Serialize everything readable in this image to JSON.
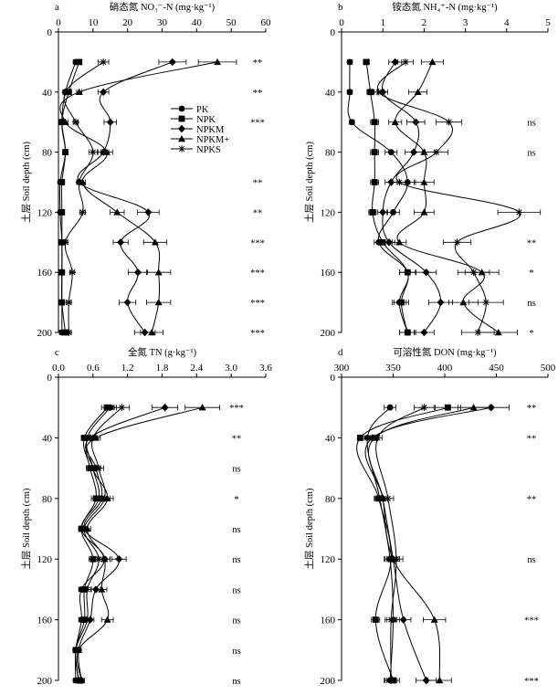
{
  "legend": [
    {
      "name": "PK",
      "marker": "circle"
    },
    {
      "name": "NPK",
      "marker": "square"
    },
    {
      "name": "NPKM",
      "marker": "diamond"
    },
    {
      "name": "NPKM+",
      "marker": "triangle"
    },
    {
      "name": "NPKS",
      "marker": "star"
    }
  ],
  "colors": {
    "line": "#000000",
    "background": "#ffffff"
  },
  "chart_data": [
    {
      "type": "line",
      "panel": "a",
      "title": "硝态氮 NO₃⁻-N (mg·kg⁻¹)",
      "ylabel": "土层 Soil depth (cm)",
      "xlim": [
        0,
        60
      ],
      "xticks": [
        "0",
        "10",
        "20",
        "30",
        "40",
        "50",
        "60"
      ],
      "ylim": [
        0,
        200
      ],
      "yticks": [
        "0",
        "40",
        "80",
        "120",
        "160",
        "200"
      ],
      "y_reversed": true,
      "depths": [
        20,
        40,
        60,
        80,
        100,
        120,
        140,
        160,
        180,
        200
      ],
      "series": [
        {
          "name": "PK",
          "values": [
            5,
            2,
            1,
            2,
            0.5,
            0.5,
            1,
            1,
            1,
            1
          ]
        },
        {
          "name": "NPK",
          "values": [
            6,
            3,
            1,
            2,
            1,
            1,
            1,
            1,
            1,
            2
          ]
        },
        {
          "name": "NPKM",
          "values": [
            33,
            13,
            15,
            13,
            6,
            26,
            18,
            23,
            20,
            25
          ]
        },
        {
          "name": "NPKM+",
          "values": [
            46,
            6,
            2,
            14,
            7,
            17,
            28,
            29,
            29,
            27
          ]
        },
        {
          "name": "NPKS",
          "values": [
            13,
            2,
            5,
            10,
            6,
            7,
            2,
            4,
            3,
            3
          ]
        }
      ],
      "significance": [
        "**",
        "**",
        "***",
        "",
        "**",
        "**",
        "***",
        "***",
        "***",
        "***"
      ]
    },
    {
      "type": "line",
      "panel": "b",
      "title": "铵态氮 NH₄⁺-N (mg·kg⁻¹)",
      "ylabel": "土层 Soil depth (cm)",
      "xlim": [
        0,
        5
      ],
      "xticks": [
        "0",
        "1",
        "2",
        "3",
        "4",
        "5"
      ],
      "ylim": [
        0,
        200
      ],
      "yticks": [
        "0",
        "40",
        "80",
        "120",
        "160",
        "200"
      ],
      "y_reversed": true,
      "depths": [
        20,
        40,
        60,
        80,
        100,
        120,
        140,
        160,
        180,
        200
      ],
      "series": [
        {
          "name": "PK",
          "values": [
            0.2,
            0.2,
            0.25,
            1.2,
            1.6,
            1.25,
            0.9,
            1.6,
            1.4,
            1.6
          ]
        },
        {
          "name": "NPK",
          "values": [
            0.6,
            0.7,
            0.8,
            0.8,
            0.8,
            0.75,
            1.0,
            1.6,
            1.45,
            1.6
          ]
        },
        {
          "name": "NPKM",
          "values": [
            1.3,
            1.0,
            1.8,
            1.75,
            1.2,
            1.0,
            1.15,
            2.05,
            2.4,
            2.0
          ]
        },
        {
          "name": "NPKM+",
          "values": [
            2.2,
            1.85,
            1.3,
            2.0,
            2.0,
            2.0,
            1.4,
            3.4,
            2.95,
            3.8
          ]
        },
        {
          "name": "NPKS",
          "values": [
            1.55,
            0.9,
            2.6,
            2.3,
            1.4,
            4.3,
            2.8,
            3.2,
            3.5,
            3.3
          ]
        }
      ],
      "significance": [
        "",
        "",
        "ns",
        "ns",
        "",
        "",
        "**",
        "*",
        "ns",
        "*"
      ]
    },
    {
      "type": "line",
      "panel": "c",
      "title": "全氮 TN (g·kg⁻¹)",
      "ylabel": "土层 Soil depth (cm)",
      "xlim": [
        0,
        3.6
      ],
      "xticks": [
        "0.0",
        "0.6",
        "1.2",
        "1.8",
        "2.4",
        "3.0",
        "3.6"
      ],
      "ylim": [
        0,
        200
      ],
      "yticks": [
        "0",
        "40",
        "80",
        "120",
        "160",
        "200"
      ],
      "y_reversed": true,
      "depths": [
        20,
        40,
        60,
        80,
        100,
        120,
        140,
        160,
        180,
        200
      ],
      "series": [
        {
          "name": "PK",
          "values": [
            0.9,
            0.5,
            0.6,
            0.7,
            0.4,
            0.8,
            0.4,
            0.4,
            0.3,
            0.3
          ]
        },
        {
          "name": "NPK",
          "values": [
            0.85,
            0.45,
            0.55,
            0.65,
            0.4,
            0.6,
            0.45,
            0.45,
            0.3,
            0.35
          ]
        },
        {
          "name": "NPKM",
          "values": [
            1.85,
            0.55,
            0.65,
            0.75,
            0.45,
            1.05,
            0.65,
            0.55,
            0.35,
            0.4
          ]
        },
        {
          "name": "NPKM+",
          "values": [
            2.5,
            0.65,
            0.6,
            0.85,
            0.5,
            0.8,
            0.75,
            0.85,
            0.35,
            0.4
          ]
        },
        {
          "name": "NPKS",
          "values": [
            1.1,
            0.6,
            0.7,
            0.8,
            0.45,
            0.7,
            0.5,
            0.5,
            0.3,
            0.35
          ]
        }
      ],
      "significance": [
        "***",
        "**",
        "ns",
        "*",
        "ns",
        "ns",
        "ns",
        "ns",
        "ns",
        "ns"
      ]
    },
    {
      "type": "line",
      "panel": "d",
      "title": "可溶性氮 DON (mg·kg⁻¹)",
      "ylabel": "土层 Soil depth (cm)",
      "xlim": [
        300,
        500
      ],
      "xticks": [
        "300",
        "350",
        "400",
        "450",
        "500"
      ],
      "ylim": [
        0,
        200
      ],
      "yticks": [
        "0",
        "40",
        "80",
        "120",
        "160",
        "200"
      ],
      "y_reversed": true,
      "depths": [
        20,
        40,
        80,
        120,
        160,
        200
      ],
      "series": [
        {
          "name": "PK",
          "values": [
            347,
            325,
            337,
            347,
            350,
            347
          ]
        },
        {
          "name": "NPK",
          "values": [
            403,
            318,
            336,
            348,
            333,
            350
          ]
        },
        {
          "name": "NPKM",
          "values": [
            445,
            330,
            340,
            350,
            360,
            382
          ]
        },
        {
          "name": "NPKM+",
          "values": [
            428,
            332,
            340,
            350,
            390,
            395
          ]
        },
        {
          "name": "NPKS",
          "values": [
            380,
            335,
            345,
            353,
            348,
            348
          ]
        }
      ],
      "significance": [
        "**",
        "**",
        "**",
        "ns",
        "***",
        "***"
      ]
    }
  ]
}
